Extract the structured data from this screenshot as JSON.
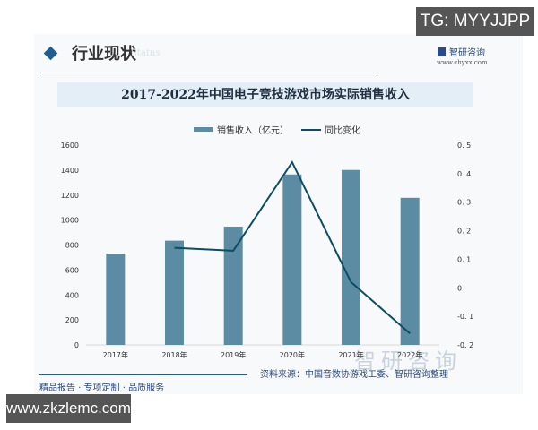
{
  "overlays": {
    "top_right": "TG: MYYJJPP",
    "bottom_left": "www.zkzlemc.com"
  },
  "header": {
    "section_title": "行业现状",
    "section_sub": "Status",
    "brand_name": "智研咨询",
    "brand_url": "www.chyxx.com"
  },
  "footer": {
    "tagline": "精品报告 · 专项定制 · 品质服务",
    "source": "资料来源：中国音数协游戏工委、智研咨询整理",
    "bg_brand": "智研咨询"
  },
  "chart_data": {
    "type": "bar",
    "title": "2017-2022年中国电子竞技游戏市场实际销售收入",
    "categories": [
      "2017年",
      "2018年",
      "2019年",
      "2020年",
      "2021年",
      "2022年"
    ],
    "series": [
      {
        "name": "销售收入（亿元）",
        "type": "bar",
        "axis": "left",
        "color": "#5b8ca3",
        "values": [
          730,
          835,
          947,
          1365,
          1401,
          1178
        ]
      },
      {
        "name": "同比变化",
        "type": "line",
        "axis": "right",
        "color": "#0d4c63",
        "values": [
          null,
          0.14,
          0.13,
          0.44,
          0.02,
          -0.16
        ]
      }
    ],
    "xlabel": "",
    "ylabel": "",
    "ylim": [
      0,
      1600
    ],
    "yticks": [
      "0",
      "200",
      "400",
      "600",
      "800",
      "1000",
      "1200",
      "1400",
      "1600"
    ],
    "y2lim": [
      -0.2,
      0.5
    ],
    "y2ticks": [
      "-0.2",
      "-0.1",
      "0",
      "0.1",
      "0.2",
      "0.3",
      "0.4",
      "0.5"
    ],
    "grid": false,
    "legend_position": "top"
  }
}
